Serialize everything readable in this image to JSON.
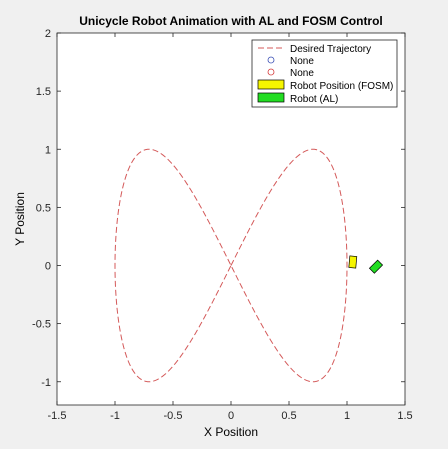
{
  "chart_data": {
    "type": "line",
    "title": "Unicycle Robot Animation with AL and FOSM Control",
    "xlabel": "X Position",
    "ylabel": "Y Position",
    "xlim": [
      -1.5,
      1.5
    ],
    "ylim": [
      -1.2,
      2
    ],
    "xticks": [
      -1.5,
      -1,
      -0.5,
      0,
      0.5,
      1,
      1.5
    ],
    "xtick_labels": [
      "-1.5",
      "-1",
      "-0.5",
      "0",
      "0.5",
      "1",
      "1.5"
    ],
    "yticks": [
      -1,
      -0.5,
      0,
      0.5,
      1,
      1.5,
      2
    ],
    "ytick_labels": [
      "-1",
      "-0.5",
      "0",
      "0.5",
      "1",
      "1.5",
      "2"
    ],
    "grid": false,
    "legend_position": "top-right",
    "series": [
      {
        "name": "Desired Trajectory",
        "style": "dashed-line",
        "color": "#d45a5a",
        "parametric": {
          "x": "sin(t)",
          "y": "sin(2t)",
          "t_range": [
            0,
            6.2832
          ]
        }
      },
      {
        "name": "None",
        "style": "circle-marker",
        "color": "#3a4fb5",
        "points": []
      },
      {
        "name": "None",
        "style": "circle-marker",
        "color": "#d43a3a",
        "points": []
      },
      {
        "name": "Robot Position (FOSM)",
        "style": "rectangle",
        "color": "#f5f500",
        "center": [
          1.05,
          0.03
        ],
        "orientation_deg": 85,
        "size": [
          0.1,
          0.06
        ]
      },
      {
        "name": "Robot (AL)",
        "style": "rectangle",
        "color": "#22dd22",
        "center": [
          1.25,
          -0.01
        ],
        "orientation_deg": 45,
        "size": [
          0.1,
          0.06
        ]
      }
    ]
  }
}
